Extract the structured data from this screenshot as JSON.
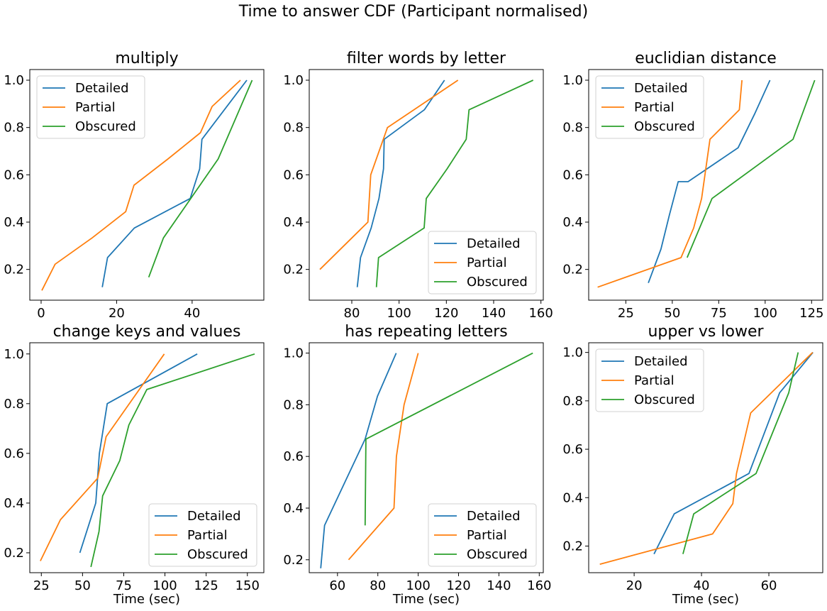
{
  "figure": {
    "title": "Time to answer CDF (Participant normalised)"
  },
  "colors": {
    "Detailed": "#1f77b4",
    "Partial": "#ff7f0e",
    "Obscured": "#2ca02c"
  },
  "chart_data": [
    {
      "type": "line",
      "title": "multiply",
      "xlabel": "",
      "ylabel": "",
      "xlim": [
        -3,
        59
      ],
      "ylim": [
        0.07,
        1.045
      ],
      "xticks": [
        0,
        20,
        40
      ],
      "yticks": [
        0.2,
        0.4,
        0.6,
        0.8,
        1.0
      ],
      "legend": "top-left",
      "grid": false,
      "series": [
        {
          "name": "Detailed",
          "x": [
            16.2,
            17.6,
            24.7,
            39.5,
            42.0,
            42.6,
            54.5
          ],
          "y": [
            0.125,
            0.25,
            0.375,
            0.5,
            0.625,
            0.75,
            1.0
          ]
        },
        {
          "name": "Partial",
          "x": [
            0.2,
            3.7,
            13.5,
            22.4,
            24.6,
            33.6,
            42.2,
            45.3,
            52.8
          ],
          "y": [
            0.111,
            0.222,
            0.333,
            0.444,
            0.556,
            0.667,
            0.778,
            0.889,
            1.0
          ]
        },
        {
          "name": "Obscured",
          "x": [
            28.5,
            32.4,
            46.9,
            55.9
          ],
          "y": [
            0.167,
            0.333,
            0.667,
            1.0
          ]
        }
      ]
    },
    {
      "type": "line",
      "title": "filter words by letter",
      "xlabel": "",
      "ylabel": "",
      "xlim": [
        62,
        161
      ],
      "ylim": [
        0.07,
        1.045
      ],
      "xticks": [
        80,
        100,
        120,
        140,
        160
      ],
      "yticks": [
        0.2,
        0.4,
        0.6,
        0.8,
        1.0
      ],
      "legend": "lower-right",
      "grid": false,
      "series": [
        {
          "name": "Detailed",
          "x": [
            82.3,
            83.7,
            88.2,
            91.5,
            93.4,
            93.7,
            110.7,
            119.2
          ],
          "y": [
            0.125,
            0.25,
            0.375,
            0.5,
            0.625,
            0.75,
            0.875,
            1.0
          ]
        },
        {
          "name": "Partial",
          "x": [
            66.5,
            86.8,
            88.0,
            95.1,
            124.9
          ],
          "y": [
            0.2,
            0.4,
            0.6,
            0.8,
            1.0
          ]
        },
        {
          "name": "Obscured",
          "x": [
            90.4,
            91.3,
            110.6,
            111.5,
            120.3,
            128.4,
            129.6,
            156.7
          ],
          "y": [
            0.125,
            0.25,
            0.375,
            0.5,
            0.625,
            0.75,
            0.875,
            1.0
          ]
        }
      ]
    },
    {
      "type": "line",
      "title": "euclidian distance",
      "xlabel": "",
      "ylabel": "",
      "xlim": [
        5,
        131
      ],
      "ylim": [
        0.07,
        1.045
      ],
      "xticks": [
        25,
        50,
        75,
        100,
        125
      ],
      "yticks": [
        0.2,
        0.4,
        0.6,
        0.8,
        1.0
      ],
      "legend": "top-left",
      "grid": false,
      "series": [
        {
          "name": "Detailed",
          "x": [
            37.1,
            43.9,
            48.4,
            53.2,
            58.5,
            85.4,
            94.3,
            102.6
          ],
          "y": [
            0.143,
            0.286,
            0.429,
            0.571,
            0.571,
            0.714,
            0.857,
            1.0
          ]
        },
        {
          "name": "Partial",
          "x": [
            9.8,
            54.7,
            61.5,
            65.8,
            70.3,
            86.1,
            87.5
          ],
          "y": [
            0.125,
            0.25,
            0.375,
            0.5,
            0.75,
            0.875,
            1.0
          ]
        },
        {
          "name": "Obscured",
          "x": [
            58.0,
            71.4,
            115.0,
            126.7
          ],
          "y": [
            0.25,
            0.5,
            0.75,
            1.0
          ]
        }
      ]
    },
    {
      "type": "line",
      "title": "change keys and values",
      "xlabel": "Time (sec)",
      "ylabel": "",
      "xlim": [
        18,
        160
      ],
      "ylim": [
        0.12,
        1.045
      ],
      "xticks": [
        25,
        50,
        75,
        100,
        125,
        150
      ],
      "yticks": [
        0.2,
        0.4,
        0.6,
        0.8,
        1.0
      ],
      "legend": "lower-right",
      "grid": false,
      "series": [
        {
          "name": "Detailed",
          "x": [
            48.4,
            58.0,
            60.2,
            65.0,
            119.6
          ],
          "y": [
            0.2,
            0.4,
            0.6,
            0.8,
            1.0
          ]
        },
        {
          "name": "Partial",
          "x": [
            24.4,
            36.6,
            59.2,
            64.3,
            99.6
          ],
          "y": [
            0.167,
            0.333,
            0.5,
            0.667,
            1.0
          ]
        },
        {
          "name": "Obscured",
          "x": [
            55.1,
            60.0,
            62.2,
            72.6,
            78.1,
            89.0,
            154.4
          ],
          "y": [
            0.143,
            0.286,
            0.429,
            0.571,
            0.714,
            0.857,
            1.0
          ]
        }
      ]
    },
    {
      "type": "line",
      "title": "has repeating letters",
      "xlabel": "Time (sec)",
      "ylabel": "",
      "xlim": [
        46,
        162
      ],
      "ylim": [
        0.15,
        1.04
      ],
      "xticks": [
        60,
        80,
        100,
        120,
        140,
        160
      ],
      "yticks": [
        0.2,
        0.4,
        0.6,
        0.8,
        1.0
      ],
      "legend": "lower-right",
      "grid": false,
      "series": [
        {
          "name": "Detailed",
          "x": [
            51.7,
            53.6,
            73.7,
            79.8,
            89.1
          ],
          "y": [
            0.167,
            0.333,
            0.667,
            0.833,
            1.0
          ]
        },
        {
          "name": "Partial",
          "x": [
            65.5,
            88.0,
            89.2,
            93.0,
            100.0
          ],
          "y": [
            0.2,
            0.4,
            0.6,
            0.8,
            1.0
          ]
        },
        {
          "name": "Obscured",
          "x": [
            73.7,
            74.1,
            156.8
          ],
          "y": [
            0.333,
            0.667,
            1.0
          ]
        }
      ]
    },
    {
      "type": "line",
      "title": "upper vs lower",
      "xlabel": "Time (sec)",
      "ylabel": "",
      "xlim": [
        6.5,
        76
      ],
      "ylim": [
        0.09,
        1.04
      ],
      "xticks": [
        20,
        40,
        60
      ],
      "yticks": [
        0.2,
        0.4,
        0.6,
        0.8,
        1.0
      ],
      "legend": "top-left",
      "grid": false,
      "series": [
        {
          "name": "Detailed",
          "x": [
            25.9,
            31.9,
            54.1,
            63.2,
            73.1
          ],
          "y": [
            0.167,
            0.333,
            0.5,
            0.833,
            1.0
          ]
        },
        {
          "name": "Partial",
          "x": [
            9.8,
            43.3,
            49.3,
            50.4,
            54.6,
            73.0
          ],
          "y": [
            0.125,
            0.25,
            0.375,
            0.5,
            0.75,
            1.0
          ]
        },
        {
          "name": "Obscured",
          "x": [
            34.5,
            37.7,
            56.2,
            65.9,
            68.7
          ],
          "y": [
            0.167,
            0.333,
            0.5,
            0.833,
            1.0
          ]
        }
      ]
    }
  ]
}
